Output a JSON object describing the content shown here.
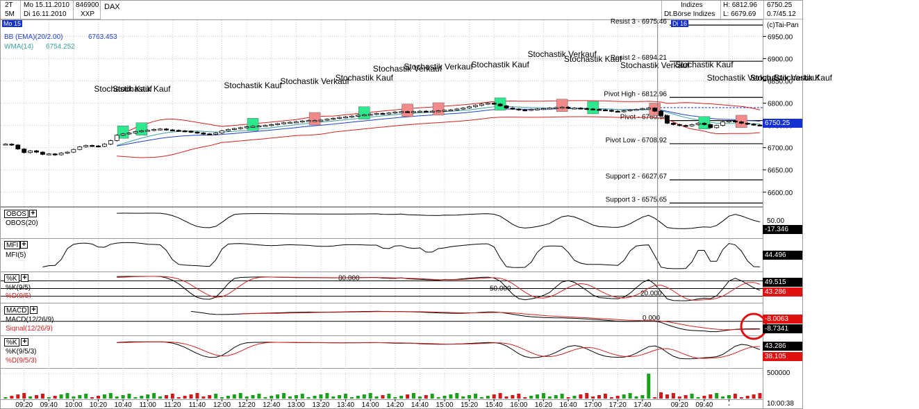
{
  "header": {
    "period_1": "2T",
    "period_2": "5M",
    "date_from": "Mo 15.11.2010",
    "date_to": "Di 16.11.2010",
    "wkn": "846900",
    "exchange_code": "XXP",
    "symbol": "DAX",
    "index_group": "Indizes",
    "exchange_name": "Dt.Börse Indizes",
    "high": "H: 6812.96",
    "low": "L: 6679.69",
    "last": "6750.25",
    "change": "0.7/45.12"
  },
  "chart_labels": {
    "day1_tag": "Mo 15",
    "day2_tag": "Di 16",
    "copyright": "(c)Tai-Pan",
    "bb_legend": "BB (EMA)(20/2.00)",
    "bb_value": "6763.453",
    "wma_legend": "WMA(14)",
    "wma_value": "6754.252"
  },
  "colors": {
    "buy": "#2ee88e",
    "sell": "#f28a8a",
    "bb": "#d42020",
    "ema": "#1e3fd0",
    "wma": "#3aa0a0",
    "volume_up": "#1aa01a",
    "volume_down": "#d01a1a",
    "price_tag": "#1530d0",
    "highlight_circle": "#e01010"
  },
  "levels": [
    {
      "label": "Resist 3 - 6975.46",
      "value": 6975.46
    },
    {
      "label": "Resist 2 - 6894.21",
      "value": 6894.21
    },
    {
      "label": "Pivot High - 6812.96",
      "value": 6812.96
    },
    {
      "label": "Pivot - 6760.94",
      "value": 6760.94
    },
    {
      "label": "Pivot Low - 6708.92",
      "value": 6708.92
    },
    {
      "label": "Support 2 - 6627.67",
      "value": 6627.67
    },
    {
      "label": "Support 3 - 6575.65",
      "value": 6575.65
    }
  ],
  "signals": [
    {
      "label": "Stochastik Kauf",
      "type": "buy",
      "time_index": 19
    },
    {
      "label": "Stochastik Kauf",
      "type": "buy",
      "time_index": 22
    },
    {
      "label": "Stochastik Kauf",
      "type": "buy",
      "time_index": 40
    },
    {
      "label": "Stochastik Verkauf",
      "type": "sell",
      "time_index": 50
    },
    {
      "label": "Stochastik Kauf",
      "type": "buy",
      "time_index": 58
    },
    {
      "label": "Stochastik Verkauf",
      "type": "sell",
      "time_index": 65
    },
    {
      "label": "Stochastik Verkauf",
      "type": "sell",
      "time_index": 70
    },
    {
      "label": "Stochastik Kauf",
      "type": "buy",
      "time_index": 80
    },
    {
      "label": "Stochastik Verkauf",
      "type": "sell",
      "time_index": 90
    },
    {
      "label": "Stochastik Kauf",
      "type": "buy",
      "time_index": 95
    },
    {
      "label": "Stochastik Verkauf",
      "type": "sell",
      "time_index": 105
    },
    {
      "label": "Stochastik Kauf",
      "type": "buy",
      "time_index": 113
    },
    {
      "label": "Stochastik Verkauf",
      "type": "sell",
      "time_index": 119
    },
    {
      "label": "Stochastik Verkauf",
      "type": "sell",
      "time_index": 126
    },
    {
      "label": "Stochastik Kauf",
      "type": "buy",
      "time_index": 129
    }
  ],
  "chart_data": {
    "type": "candlestick",
    "title": "DAX",
    "ylim": [
      6570,
      6985
    ],
    "y_ticks": [
      6600,
      6650,
      6700,
      6750,
      6800,
      6850,
      6900,
      6950
    ],
    "x_tick_labels": [
      "09:20",
      "09:40",
      "10:00",
      "10:20",
      "10:40",
      "11:00",
      "11:20",
      "11:40",
      "12:00",
      "12:20",
      "12:40",
      "13:00",
      "13:20",
      "13:40",
      "14:00",
      "14:20",
      "14:40",
      "15:00",
      "15:20",
      "15:40",
      "16:00",
      "16:20",
      "16:40",
      "17:00",
      "17:20",
      "17:40",
      "09:20",
      "09:40",
      "-"
    ],
    "x_tick_index": [
      3,
      7,
      11,
      15,
      19,
      23,
      27,
      31,
      35,
      39,
      43,
      47,
      51,
      55,
      59,
      63,
      67,
      71,
      75,
      79,
      83,
      87,
      91,
      95,
      99,
      103,
      109,
      113,
      117
    ],
    "time_axis_end": "10:00:38",
    "close": [
      6708,
      6706,
      6697,
      6689,
      6693,
      6690,
      6685,
      6686,
      6684,
      6688,
      6690,
      6696,
      6702,
      6705,
      6704,
      6703,
      6708,
      6716,
      6728,
      6731,
      6733,
      6736,
      6738,
      6739,
      6741,
      6742,
      6740,
      6739,
      6738,
      6737,
      6735,
      6733,
      6731,
      6730,
      6733,
      6738,
      6741,
      6743,
      6745,
      6747,
      6748,
      6749,
      6750,
      6752,
      6754,
      6756,
      6757,
      6758,
      6760,
      6761,
      6761,
      6762,
      6764,
      6766,
      6768,
      6769,
      6771,
      6773,
      6774,
      6775,
      6777,
      6776,
      6778,
      6780,
      6781,
      6780,
      6781,
      6782,
      6781,
      6782,
      6783,
      6784,
      6785,
      6787,
      6789,
      6792,
      6795,
      6798,
      6800,
      6798,
      6794,
      6789,
      6787,
      6785,
      6784,
      6786,
      6787,
      6788,
      6789,
      6790,
      6791,
      6789,
      6789,
      6788,
      6787,
      6786,
      6785,
      6784,
      6782,
      6781,
      6783,
      6785,
      6786,
      6788,
      6789,
      6782,
      6772,
      6755,
      6752,
      6750,
      6749,
      6752,
      6755,
      6752,
      6745,
      6750,
      6758,
      6760,
      6758,
      6755,
      6753,
      6751,
      6750
    ],
    "series": [
      {
        "name": "BB (EMA)(20/2.00)",
        "last": 6763.453
      },
      {
        "name": "WMA(14)",
        "last": 6754.252
      }
    ]
  },
  "indicators": {
    "obos": {
      "button": "OBOS",
      "label": "OBOS(20)",
      "level_label": "50.00",
      "value": "-17.346"
    },
    "mfi": {
      "button": "MFI",
      "label": "MFI(5)",
      "value": "44.496"
    },
    "stoch1": {
      "button": "%K",
      "label_k": "%K(9/5)",
      "label_d": "%D(9/5)",
      "level_high": "80.000",
      "level_mid": "50.000",
      "level_low": "20.000",
      "value_k": "49.515",
      "value_d": "43.286"
    },
    "macd": {
      "button": "MACD",
      "label_macd": "MACD(12/26/9)",
      "label_signal": "Signal(12/26/9)",
      "zero_label": "0.000",
      "value_macd": "-8.7341",
      "value_signal": "-8.0063"
    },
    "stoch2": {
      "button": "%K",
      "label_k": "%K(9/5/3)",
      "label_d": "%D(9/5/3)",
      "value_k": "43.286",
      "value_d": "38.105"
    },
    "volume": {
      "level_label": "500000"
    }
  }
}
